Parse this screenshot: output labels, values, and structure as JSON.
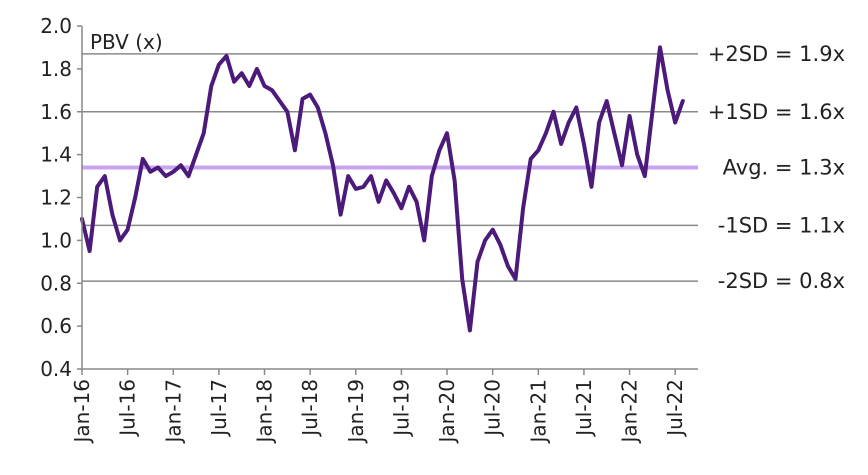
{
  "chart_data": {
    "type": "line",
    "ylabel_inside": "PBV (x)",
    "ylim": [
      0.4,
      2.0
    ],
    "yticks": [
      0.4,
      0.6,
      0.8,
      1.0,
      1.2,
      1.4,
      1.6,
      1.8,
      2.0
    ],
    "ytick_labels": [
      "0.4",
      "0.6",
      "0.8",
      "1.0",
      "1.2",
      "1.4",
      "1.6",
      "1.8",
      "2.0"
    ],
    "xtick_labels": [
      "Jan-16",
      "Jul-16",
      "Jan-17",
      "Jul-17",
      "Jan-18",
      "Jul-18",
      "Jan-19",
      "Jul-19",
      "Jan-20",
      "Jul-20",
      "Jan-21",
      "Jul-21",
      "Jan-22",
      "Jul-22"
    ],
    "xlim": [
      "2016-01",
      "2022-10"
    ],
    "bands": [
      {
        "label": "+2SD = 1.9x",
        "value": 1.87,
        "color": "#8a8a8a"
      },
      {
        "label": "+1SD = 1.6x",
        "value": 1.6,
        "color": "#8a8a8a"
      },
      {
        "label": "Avg. = 1.3x",
        "value": 1.34,
        "color": "#c9a2f0"
      },
      {
        "label": "-1SD = 1.1x",
        "value": 1.07,
        "color": "#8a8a8a"
      },
      {
        "label": "-2SD = 0.8x",
        "value": 0.81,
        "color": "#8a8a8a"
      }
    ],
    "series": [
      {
        "color": "#4b1a7a",
        "x": [
          "2016-01",
          "2016-02",
          "2016-03",
          "2016-04",
          "2016-05",
          "2016-06",
          "2016-07",
          "2016-08",
          "2016-09",
          "2016-10",
          "2016-11",
          "2016-12",
          "2017-01",
          "2017-02",
          "2017-03",
          "2017-04",
          "2017-05",
          "2017-06",
          "2017-07",
          "2017-08",
          "2017-09",
          "2017-10",
          "2017-11",
          "2017-12",
          "2018-01",
          "2018-02",
          "2018-03",
          "2018-04",
          "2018-05",
          "2018-06",
          "2018-07",
          "2018-08",
          "2018-09",
          "2018-10",
          "2018-11",
          "2018-12",
          "2019-01",
          "2019-02",
          "2019-03",
          "2019-04",
          "2019-05",
          "2019-06",
          "2019-07",
          "2019-08",
          "2019-09",
          "2019-10",
          "2019-11",
          "2019-12",
          "2020-01",
          "2020-02",
          "2020-03",
          "2020-04",
          "2020-05",
          "2020-06",
          "2020-07",
          "2020-08",
          "2020-09",
          "2020-10",
          "2020-11",
          "2020-12",
          "2021-01",
          "2021-02",
          "2021-03",
          "2021-04",
          "2021-05",
          "2021-06",
          "2021-07",
          "2021-08",
          "2021-09",
          "2021-10",
          "2021-11",
          "2021-12",
          "2022-01",
          "2022-02",
          "2022-03",
          "2022-04",
          "2022-05",
          "2022-06",
          "2022-07",
          "2022-08"
        ],
        "values": [
          1.1,
          0.95,
          1.25,
          1.3,
          1.12,
          1.0,
          1.05,
          1.2,
          1.38,
          1.32,
          1.34,
          1.3,
          1.32,
          1.35,
          1.3,
          1.4,
          1.5,
          1.72,
          1.82,
          1.86,
          1.74,
          1.78,
          1.72,
          1.8,
          1.72,
          1.7,
          1.65,
          1.6,
          1.42,
          1.66,
          1.68,
          1.62,
          1.5,
          1.35,
          1.12,
          1.3,
          1.24,
          1.25,
          1.3,
          1.18,
          1.28,
          1.22,
          1.15,
          1.25,
          1.18,
          1.0,
          1.3,
          1.42,
          1.5,
          1.28,
          0.82,
          0.58,
          0.9,
          1.0,
          1.05,
          0.98,
          0.88,
          0.82,
          1.15,
          1.38,
          1.42,
          1.5,
          1.6,
          1.45,
          1.55,
          1.62,
          1.45,
          1.25,
          1.55,
          1.65,
          1.5,
          1.35,
          1.58,
          1.4,
          1.3,
          1.6,
          1.9,
          1.7,
          1.55,
          1.65
        ]
      }
    ],
    "grid": false,
    "legend": "none"
  }
}
